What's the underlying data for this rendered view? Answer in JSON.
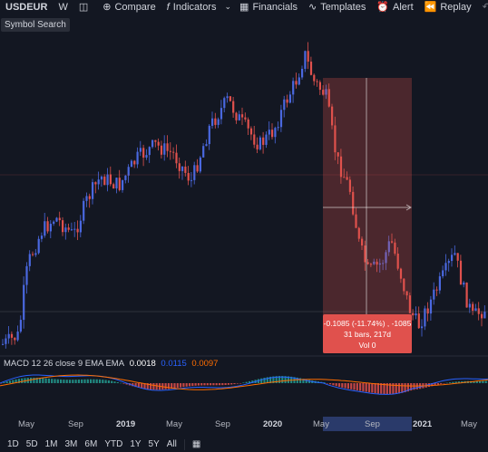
{
  "toolbar": {
    "symbol": "USDEUR",
    "interval": "W",
    "compare_label": "Compare",
    "indicators_label": "Indicators",
    "financials_label": "Financials",
    "templates_label": "Templates",
    "alert_label": "Alert",
    "replay_label": "Replay"
  },
  "tooltip": {
    "text": "Symbol Search"
  },
  "macd": {
    "label": "MACD 12 26 close 9 EMA EMA",
    "value1": "0.0018",
    "value2": "0.0115",
    "value3": "0.0097",
    "color1": "#ffffff",
    "color2": "#2962ff",
    "color3": "#ff6d00"
  },
  "measure": {
    "line1": "-0.1085 (-11.74%) , -1085",
    "line2": "31 bars, 217d",
    "line3": "Vol 0"
  },
  "xaxis": {
    "labels": [
      "May",
      "Sep",
      "2019",
      "May",
      "Sep",
      "2020",
      "May",
      "Sep",
      "2021",
      "May"
    ]
  },
  "bottom": {
    "ranges": [
      "1D",
      "5D",
      "1M",
      "3M",
      "6M",
      "YTD",
      "1Y",
      "5Y",
      "All"
    ],
    "calendar_icon": "calendar-range-icon"
  },
  "colors": {
    "background": "#131722",
    "up": "#4a68e0",
    "down": "#e0514d",
    "measure_fill": "#e0514d"
  }
}
